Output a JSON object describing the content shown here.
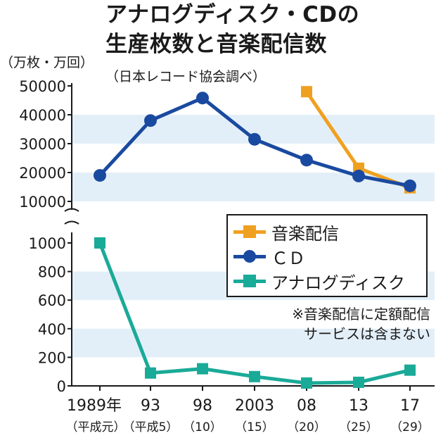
{
  "title_line1": "アナログディスク・CDの",
  "title_line2": "生産枚数と音楽配信数",
  "subtitle": "（日本レコード協会調べ）",
  "unit": "（万枚・万回）",
  "note_line1": "※音楽配信に定額配信",
  "note_line2": "サービスは含まない",
  "colors": {
    "music_streaming": "#f0a020",
    "cd": "#1a4aa0",
    "analog": "#1aaa98",
    "band": "#e3eff8",
    "ink": "#1a1a1a"
  },
  "chart_data": {
    "type": "line",
    "x": [
      "1989年",
      "93",
      "98",
      "2003",
      "08",
      "13",
      "17"
    ],
    "x_sublabels": [
      "（平成元）",
      "（平成5）",
      "（10）",
      "（15）",
      "（20）",
      "（25）",
      "（29）"
    ],
    "upper_axis": {
      "ticks": [
        "50000",
        "40000",
        "30000",
        "20000",
        "10000"
      ],
      "ylim": [
        10000,
        50000
      ]
    },
    "lower_axis": {
      "ticks": [
        "1000",
        "800",
        "600",
        "400",
        "200",
        "0"
      ],
      "ylim": [
        0,
        1000
      ]
    },
    "axis_break": true,
    "grid": "horizontal bands",
    "legend_position": "right-middle",
    "series": [
      {
        "name": "音楽配信",
        "axis": "upper",
        "values": [
          null,
          null,
          null,
          null,
          48000,
          21500,
          14700
        ],
        "marker": "square"
      },
      {
        "name": "ＣＤ",
        "axis": "upper",
        "values": [
          19000,
          38000,
          45800,
          31500,
          24300,
          18800,
          15400
        ],
        "marker": "circle"
      },
      {
        "name": "アナログディスク",
        "axis": "lower",
        "values": [
          1000,
          90,
          120,
          65,
          20,
          25,
          110
        ],
        "marker": "square"
      }
    ]
  }
}
